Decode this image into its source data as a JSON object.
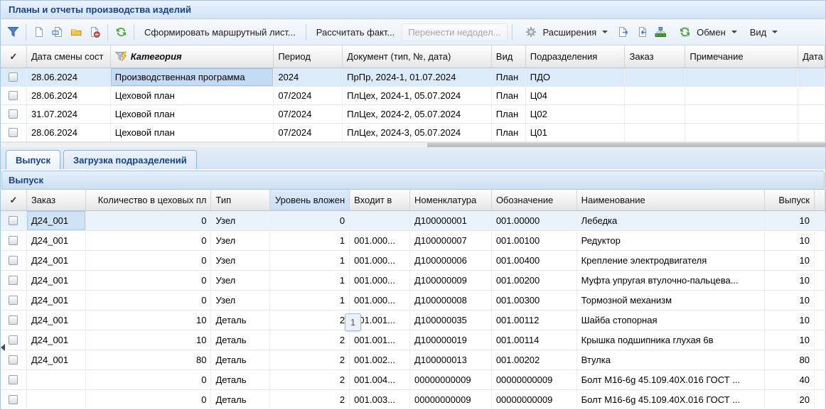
{
  "window_title": "Планы и отчеты производства изделий",
  "check_glyph": "✓",
  "toolbar": {
    "format_route_list": "Сформировать маршрутный лист...",
    "calc_fact": "Рассчитать факт...",
    "move_unfinished": "Перенести недодел...",
    "extensions": "Расширения",
    "exchange": "Обмен",
    "view": "Вид",
    "icons": [
      "filter-icon",
      "new-document-icon",
      "copy-document-icon",
      "open-folder-icon",
      "delete-document-icon",
      "refresh-icon",
      "gear-icon",
      "export-document-icon",
      "import-document-icon",
      "hierarchy-icon",
      "exchange-icon"
    ]
  },
  "top_grid": {
    "columns": [
      "",
      "Дата смены сост",
      "Категория",
      "Период",
      "Документ (тип, №, дата)",
      "Вид",
      "Подразделения",
      "Заказ",
      "Примечание",
      "Дата"
    ],
    "filtered_column": "Категория",
    "rows": [
      [
        "28.06.2024",
        "Производственная программа",
        "2024",
        "ПрПр, 2024-1, 01.07.2024",
        "План",
        "ПДО",
        "",
        "",
        ""
      ],
      [
        "28.06.2024",
        "Цеховой план",
        "07/2024",
        "ПлЦех, 2024-1, 05.07.2024",
        "План",
        "Ц04",
        "",
        "",
        ""
      ],
      [
        "31.07.2024",
        "Цеховой план",
        "07/2024",
        "ПлЦех, 2024-2, 05.07.2024",
        "План",
        "Ц02",
        "",
        "",
        ""
      ],
      [
        "28.06.2024",
        "Цеховой план",
        "07/2024",
        "ПлЦех, 2024-3, 05.07.2024",
        "План",
        "Ц01",
        "",
        "",
        ""
      ]
    ]
  },
  "tabs": [
    {
      "label": "Выпуск",
      "active": true
    },
    {
      "label": "Загрузка подразделений",
      "active": false
    }
  ],
  "panel_title": "Выпуск",
  "bottom_grid": {
    "columns": [
      "",
      "Заказ",
      "Количество в цеховых пл",
      "Тип",
      "Уровень вложен",
      "Входит в",
      "Номенклатура",
      "Обозначение",
      "Наименование",
      "Выпуск",
      ""
    ],
    "rows": [
      [
        "Д24_001",
        "0",
        "Узел",
        "0",
        "",
        "Д100000001",
        "001.00000",
        "Лебедка",
        "10"
      ],
      [
        "Д24_001",
        "0",
        "Узел",
        "1",
        "001.000...",
        "Д100000007",
        "001.00100",
        "Редуктор",
        "10"
      ],
      [
        "Д24_001",
        "0",
        "Узел",
        "1",
        "001.000...",
        "Д100000006",
        "001.00400",
        "Крепление электродвигателя",
        "10"
      ],
      [
        "Д24_001",
        "0",
        "Узел",
        "1",
        "001.000...",
        "Д100000009",
        "001.00200",
        "Муфта упругая втулочно-пальцева...",
        "10"
      ],
      [
        "Д24_001",
        "0",
        "Узел",
        "1",
        "001.000...",
        "Д100000008",
        "001.00300",
        "Тормозной механизм",
        "10"
      ],
      [
        "Д24_001",
        "10",
        "Деталь",
        "2",
        "001.001...",
        "Д100000035",
        "001.00112",
        "Шайба стопорная",
        "10"
      ],
      [
        "Д24_001",
        "10",
        "Деталь",
        "2",
        "001.001...",
        "Д100000019",
        "001.00114",
        "Крышка подшипника глухая 6в",
        "10"
      ],
      [
        "Д24_001",
        "80",
        "Деталь",
        "2",
        "001.002...",
        "Д100000013",
        "001.00202",
        "Втулка",
        "80"
      ],
      [
        "",
        "0",
        "Деталь",
        "2",
        "001.004...",
        "00000000009",
        "00000000009",
        "Болт М16-6g 45.109.40Х.016 ГОСТ ...",
        "40"
      ],
      [
        "",
        "0",
        "Деталь",
        "2",
        "001.003...",
        "00000000009",
        "00000000009",
        "Болт М16-6g 45.109.40Х.016 ГОСТ ...",
        "20"
      ]
    ]
  },
  "overlay_badge": "1",
  "colors": {
    "accent": "#15428b",
    "panel_border": "#99bbe8",
    "selected_cell": "#c5dbf3",
    "selected_row": "#dcebfa",
    "header_highlight": "#d3e5f8",
    "disabled_text": "#a6a6a6"
  }
}
